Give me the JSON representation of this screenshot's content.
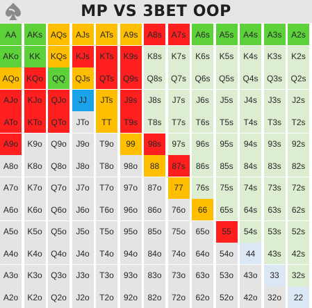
{
  "title": "MP VS 3BET OOP",
  "logo_icon": "spade-logo-icon",
  "colors": {
    "G": "#5cd13a",
    "R": "#ff1f1f",
    "O": "#ffbf00",
    "B": "#1aa3e8",
    "L": "#dcedd2",
    "D": "#dbe8f3",
    "W": "#e4e4e4"
  },
  "rows": [
    [
      [
        "AA",
        "G"
      ],
      [
        "AKs",
        "G"
      ],
      [
        "AQs",
        "O"
      ],
      [
        "AJs",
        "O"
      ],
      [
        "ATs",
        "O"
      ],
      [
        "A9s",
        "O"
      ],
      [
        "A8s",
        "R"
      ],
      [
        "A7s",
        "R"
      ],
      [
        "A6s",
        "G"
      ],
      [
        "A5s",
        "G"
      ],
      [
        "A4s",
        "G"
      ],
      [
        "A3s",
        "G"
      ],
      [
        "A2s",
        "G"
      ]
    ],
    [
      [
        "AKo",
        "G"
      ],
      [
        "KK",
        "G"
      ],
      [
        "KQs",
        "O"
      ],
      [
        "KJs",
        "R"
      ],
      [
        "KTs",
        "R"
      ],
      [
        "K9s",
        "R"
      ],
      [
        "K8s",
        "L"
      ],
      [
        "K7s",
        "L"
      ],
      [
        "K6s",
        "L"
      ],
      [
        "K5s",
        "L"
      ],
      [
        "K4s",
        "L"
      ],
      [
        "K3s",
        "L"
      ],
      [
        "K2s",
        "L"
      ]
    ],
    [
      [
        "AQo",
        "O"
      ],
      [
        "KQo",
        "R"
      ],
      [
        "QQ",
        "G"
      ],
      [
        "QJs",
        "O"
      ],
      [
        "QTs",
        "R"
      ],
      [
        "Q9s",
        "R"
      ],
      [
        "Q8s",
        "L"
      ],
      [
        "Q7s",
        "L"
      ],
      [
        "Q6s",
        "L"
      ],
      [
        "Q5s",
        "L"
      ],
      [
        "Q4s",
        "L"
      ],
      [
        "Q3s",
        "L"
      ],
      [
        "Q2s",
        "L"
      ]
    ],
    [
      [
        "AJo",
        "R"
      ],
      [
        "KJo",
        "R"
      ],
      [
        "QJo",
        "R"
      ],
      [
        "JJ",
        "B"
      ],
      [
        "JTs",
        "O"
      ],
      [
        "J9s",
        "R"
      ],
      [
        "J8s",
        "L"
      ],
      [
        "J7s",
        "L"
      ],
      [
        "J6s",
        "L"
      ],
      [
        "J5s",
        "L"
      ],
      [
        "J4s",
        "L"
      ],
      [
        "J3s",
        "L"
      ],
      [
        "J2s",
        "L"
      ]
    ],
    [
      [
        "ATo",
        "R"
      ],
      [
        "KTo",
        "R"
      ],
      [
        "QTo",
        "R"
      ],
      [
        "JTo",
        "W"
      ],
      [
        "TT",
        "O"
      ],
      [
        "T9s",
        "R"
      ],
      [
        "T8s",
        "L"
      ],
      [
        "T7s",
        "L"
      ],
      [
        "T6s",
        "L"
      ],
      [
        "T5s",
        "L"
      ],
      [
        "T4s",
        "L"
      ],
      [
        "T3s",
        "L"
      ],
      [
        "T2s",
        "L"
      ]
    ],
    [
      [
        "A9o",
        "R"
      ],
      [
        "K9o",
        "W"
      ],
      [
        "Q9o",
        "W"
      ],
      [
        "J9o",
        "W"
      ],
      [
        "T9o",
        "W"
      ],
      [
        "99",
        "O"
      ],
      [
        "98s",
        "R"
      ],
      [
        "97s",
        "L"
      ],
      [
        "96s",
        "L"
      ],
      [
        "95s",
        "L"
      ],
      [
        "94s",
        "L"
      ],
      [
        "93s",
        "L"
      ],
      [
        "92s",
        "L"
      ]
    ],
    [
      [
        "A8o",
        "W"
      ],
      [
        "K8o",
        "W"
      ],
      [
        "Q8o",
        "W"
      ],
      [
        "J8o",
        "W"
      ],
      [
        "T8o",
        "W"
      ],
      [
        "98o",
        "W"
      ],
      [
        "88",
        "O"
      ],
      [
        "87s",
        "R"
      ],
      [
        "86s",
        "L"
      ],
      [
        "85s",
        "L"
      ],
      [
        "84s",
        "L"
      ],
      [
        "83s",
        "L"
      ],
      [
        "82s",
        "L"
      ]
    ],
    [
      [
        "A7o",
        "W"
      ],
      [
        "K7o",
        "W"
      ],
      [
        "Q7o",
        "W"
      ],
      [
        "J7o",
        "W"
      ],
      [
        "T7o",
        "W"
      ],
      [
        "97o",
        "W"
      ],
      [
        "87o",
        "W"
      ],
      [
        "77",
        "O"
      ],
      [
        "76s",
        "L"
      ],
      [
        "75s",
        "L"
      ],
      [
        "74s",
        "L"
      ],
      [
        "73s",
        "L"
      ],
      [
        "72s",
        "L"
      ]
    ],
    [
      [
        "A6o",
        "W"
      ],
      [
        "K6o",
        "W"
      ],
      [
        "Q6o",
        "W"
      ],
      [
        "J6o",
        "W"
      ],
      [
        "T6o",
        "W"
      ],
      [
        "96o",
        "W"
      ],
      [
        "86o",
        "W"
      ],
      [
        "76o",
        "W"
      ],
      [
        "66",
        "O"
      ],
      [
        "65s",
        "L"
      ],
      [
        "64s",
        "L"
      ],
      [
        "63s",
        "L"
      ],
      [
        "62s",
        "L"
      ]
    ],
    [
      [
        "A5o",
        "W"
      ],
      [
        "K5o",
        "W"
      ],
      [
        "Q5o",
        "W"
      ],
      [
        "J5o",
        "W"
      ],
      [
        "T5o",
        "W"
      ],
      [
        "95o",
        "W"
      ],
      [
        "85o",
        "W"
      ],
      [
        "75o",
        "W"
      ],
      [
        "65o",
        "W"
      ],
      [
        "55",
        "R"
      ],
      [
        "54s",
        "L"
      ],
      [
        "53s",
        "L"
      ],
      [
        "52s",
        "L"
      ]
    ],
    [
      [
        "A4o",
        "W"
      ],
      [
        "K4o",
        "W"
      ],
      [
        "Q4o",
        "W"
      ],
      [
        "J4o",
        "W"
      ],
      [
        "T4o",
        "W"
      ],
      [
        "94o",
        "W"
      ],
      [
        "84o",
        "W"
      ],
      [
        "74o",
        "W"
      ],
      [
        "64o",
        "W"
      ],
      [
        "54o",
        "W"
      ],
      [
        "44",
        "D"
      ],
      [
        "43s",
        "L"
      ],
      [
        "42s",
        "L"
      ]
    ],
    [
      [
        "A3o",
        "W"
      ],
      [
        "K3o",
        "W"
      ],
      [
        "Q3o",
        "W"
      ],
      [
        "J3o",
        "W"
      ],
      [
        "T3o",
        "W"
      ],
      [
        "93o",
        "W"
      ],
      [
        "83o",
        "W"
      ],
      [
        "73o",
        "W"
      ],
      [
        "63o",
        "W"
      ],
      [
        "53o",
        "W"
      ],
      [
        "43o",
        "W"
      ],
      [
        "33",
        "D"
      ],
      [
        "32s",
        "L"
      ]
    ],
    [
      [
        "A2o",
        "W"
      ],
      [
        "K2o",
        "W"
      ],
      [
        "Q2o",
        "W"
      ],
      [
        "J2o",
        "W"
      ],
      [
        "T2o",
        "W"
      ],
      [
        "92o",
        "W"
      ],
      [
        "82o",
        "W"
      ],
      [
        "72o",
        "W"
      ],
      [
        "62o",
        "W"
      ],
      [
        "52o",
        "W"
      ],
      [
        "42o",
        "W"
      ],
      [
        "32o",
        "W"
      ],
      [
        "22",
        "D"
      ]
    ]
  ]
}
